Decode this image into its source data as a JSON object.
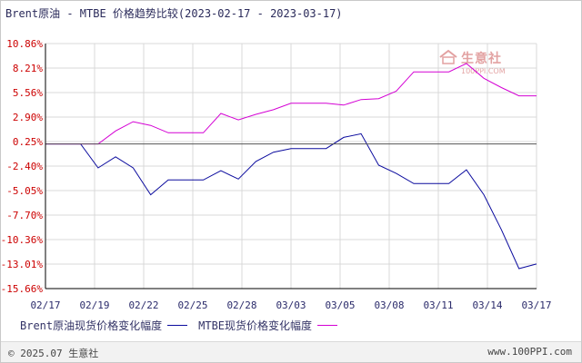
{
  "title": "Brent原油 - MTBE 价格趋势比较(2023-02-17 - 2023-03-17)",
  "legend": [
    {
      "label": "Brent原油现货价格变化幅度",
      "color": "#0b0b9e"
    },
    {
      "label": "MTBE现货价格变化幅度",
      "color": "#d400d4"
    }
  ],
  "footer": {
    "copyright": "© 2025.07 生意社",
    "site": "www.100PPI.com"
  },
  "watermark": {
    "name": "生意社",
    "site": "100PPI.COM"
  },
  "colors": {
    "grid": "#d8d8d8",
    "axis": "#000000",
    "tick_text_red": "#cc0000",
    "x_tick_text": "#2b2b6b"
  },
  "chart_data": {
    "type": "line",
    "title": "Brent原油 - MTBE 价格趋势比较(2023-02-17 - 2023-03-17)",
    "y_ticks": [
      "10.86%",
      "8.21%",
      "5.56%",
      "2.90%",
      "0.25%",
      "-2.40%",
      "-5.05%",
      "-7.70%",
      "-10.36%",
      "-13.01%",
      "-15.66%"
    ],
    "ylim": [
      -15.66,
      10.86
    ],
    "x_ticks": [
      "02/17",
      "02/19",
      "02/22",
      "02/25",
      "02/28",
      "03/03",
      "03/05",
      "03/08",
      "03/11",
      "03/14",
      "03/17"
    ],
    "x": [
      "02/17",
      "02/18",
      "02/19",
      "02/20",
      "02/21",
      "02/22",
      "02/23",
      "02/24",
      "02/25",
      "02/26",
      "02/27",
      "02/28",
      "03/01",
      "03/02",
      "03/03",
      "03/04",
      "03/05",
      "03/06",
      "03/07",
      "03/08",
      "03/09",
      "03/10",
      "03/11",
      "03/12",
      "03/13",
      "03/14",
      "03/15",
      "03/16",
      "03/17"
    ],
    "series": [
      {
        "name": "Brent原油现货价格变化幅度",
        "color": "#0b0b9e",
        "values": [
          0,
          0,
          0,
          -2.6,
          -1.4,
          -2.6,
          -5.5,
          -3.9,
          -3.9,
          -3.9,
          -2.9,
          -3.8,
          -1.9,
          -0.9,
          -0.5,
          -0.5,
          -0.5,
          0.7,
          1.1,
          -2.3,
          -3.2,
          -4.3,
          -4.3,
          -4.3,
          -2.8,
          -5.5,
          -9.3,
          -13.5,
          -13.0
        ]
      },
      {
        "name": "MTBE现货价格变化幅度",
        "color": "#d400d4",
        "values": [
          0,
          0,
          0,
          0,
          1.4,
          2.4,
          2.0,
          1.2,
          1.2,
          1.2,
          3.3,
          2.6,
          3.2,
          3.7,
          4.4,
          4.4,
          4.4,
          4.2,
          4.8,
          4.9,
          5.7,
          7.8,
          7.8,
          7.8,
          8.7,
          7.1,
          6.1,
          5.2,
          5.2
        ]
      }
    ]
  }
}
